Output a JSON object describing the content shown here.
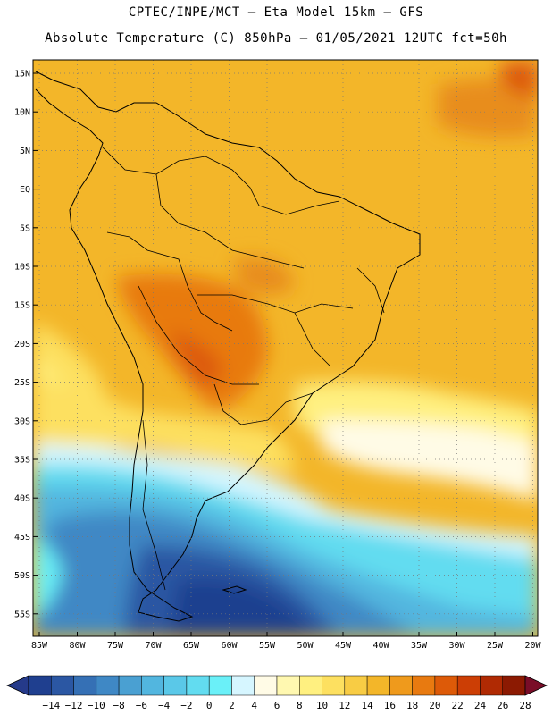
{
  "header": {
    "line1": "CPTEC/INPE/MCT –  Eta Model 15km – GFS",
    "line2": "Absolute Temperature (C) 850hPa – 01/05/2021 12UTC fct=50h"
  },
  "map": {
    "lat_labels": [
      "15N",
      "10N",
      "5N",
      "EQ",
      "5S",
      "10S",
      "15S",
      "20S",
      "25S",
      "30S",
      "35S",
      "40S",
      "45S",
      "50S",
      "55S"
    ],
    "lon_labels": [
      "85W",
      "80W",
      "75W",
      "70W",
      "65W",
      "60W",
      "55W",
      "50W",
      "45W",
      "40W",
      "35W",
      "30W",
      "25W",
      "20W"
    ]
  },
  "colorbar": {
    "labels": [
      "-14",
      "-12",
      "-10",
      "-8",
      "-6",
      "-4",
      "-2",
      "0",
      "2",
      "4",
      "6",
      "8",
      "10",
      "12",
      "14",
      "16",
      "18",
      "20",
      "22",
      "24",
      "26",
      "28"
    ],
    "colors": [
      "#1f3f8f",
      "#2b57a3",
      "#3570b5",
      "#3f88c5",
      "#4aa0d2",
      "#52b6df",
      "#5ac8e8",
      "#62dcf0",
      "#6af0f8",
      "#d6f6ff",
      "#fffbe6",
      "#fff8b0",
      "#fff080",
      "#fde060",
      "#f8cc44",
      "#f3b629",
      "#ef9a1c",
      "#e87a10",
      "#dd5a08",
      "#cc3e05",
      "#b02a03",
      "#8c1a02"
    ],
    "min_color": "#253a8a",
    "max_color": "#7a0d28"
  }
}
